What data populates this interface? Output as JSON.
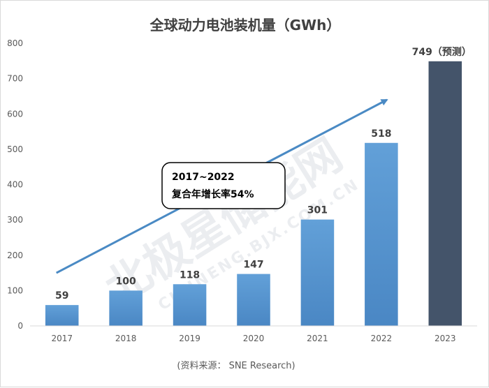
{
  "chart_data": {
    "type": "bar",
    "title": "全球动力电池装机量（GWh）",
    "categories": [
      "2017",
      "2018",
      "2019",
      "2020",
      "2021",
      "2022",
      "2023"
    ],
    "values": [
      59,
      100,
      118,
      147,
      301,
      518,
      749
    ],
    "labels": [
      "59",
      "100",
      "118",
      "147",
      "301",
      "518",
      "749（预测）"
    ],
    "forecast": [
      false,
      false,
      false,
      false,
      false,
      false,
      true
    ],
    "ylim": [
      0,
      800
    ],
    "yticks": [
      0,
      100,
      200,
      300,
      400,
      500,
      600,
      700,
      800
    ],
    "xlabel": "",
    "ylabel": "",
    "grid": false,
    "colors": {
      "actual": "#5b9bd5",
      "actual_light": "#8fbde6",
      "forecast": "#44546a",
      "arrow": "#4a8ac4"
    },
    "annotation": {
      "line1": "2017~2022",
      "line2": "复合年增长率54%",
      "arrow_from": [
        2017,
        150
      ],
      "arrow_to": [
        2022,
        640
      ]
    },
    "source": "(资料来源：  SNE Research)"
  },
  "watermark": {
    "main": "北极星储能网",
    "sub": "CHUNENG.BJX.COM.CN"
  }
}
